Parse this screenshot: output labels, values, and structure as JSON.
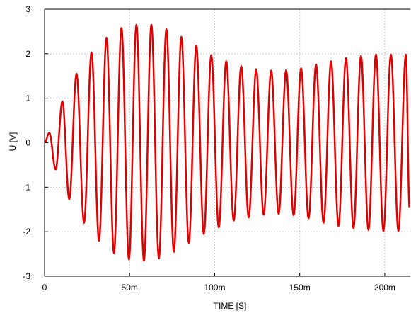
{
  "chart_data": {
    "type": "line",
    "title": "",
    "xlabel": "TIME [S]",
    "ylabel": "U [V]",
    "xlim": [
      0,
      0.215
    ],
    "ylim": [
      -3,
      3
    ],
    "x_ticks": [
      {
        "value": 0,
        "label": "0"
      },
      {
        "value": 0.05,
        "label": "50m"
      },
      {
        "value": 0.1,
        "label": "100m"
      },
      {
        "value": 0.15,
        "label": "150m"
      },
      {
        "value": 0.2,
        "label": "200m"
      }
    ],
    "y_ticks": [
      {
        "value": -3,
        "label": "-3"
      },
      {
        "value": -2,
        "label": "-2"
      },
      {
        "value": -1,
        "label": "-1"
      },
      {
        "value": 0,
        "label": "0"
      },
      {
        "value": 1,
        "label": "1"
      },
      {
        "value": 2,
        "label": "2"
      },
      {
        "value": 3,
        "label": "3"
      }
    ],
    "grid": true,
    "legend": "none",
    "series": [
      {
        "color": "#e00000",
        "points": [
          [
            0.0,
            0.0
          ],
          [
            0.0028,
            0.22
          ],
          [
            0.0065,
            -0.6
          ],
          [
            0.0105,
            0.93
          ],
          [
            0.0145,
            -1.27
          ],
          [
            0.0188,
            1.55
          ],
          [
            0.0232,
            -1.8
          ],
          [
            0.0276,
            2.03
          ],
          [
            0.032,
            -2.2
          ],
          [
            0.0364,
            2.36
          ],
          [
            0.0408,
            -2.48
          ],
          [
            0.0452,
            2.58
          ],
          [
            0.0496,
            -2.62
          ],
          [
            0.054,
            2.65
          ],
          [
            0.0584,
            -2.65
          ],
          [
            0.0628,
            2.65
          ],
          [
            0.0672,
            -2.6
          ],
          [
            0.0716,
            2.55
          ],
          [
            0.076,
            -2.45
          ],
          [
            0.0804,
            2.38
          ],
          [
            0.0848,
            -2.25
          ],
          [
            0.0892,
            2.18
          ],
          [
            0.0936,
            -2.05
          ],
          [
            0.098,
            1.97
          ],
          [
            0.1024,
            -1.9
          ],
          [
            0.1068,
            1.83
          ],
          [
            0.1112,
            -1.75
          ],
          [
            0.1156,
            1.72
          ],
          [
            0.12,
            -1.68
          ],
          [
            0.1244,
            1.65
          ],
          [
            0.1288,
            -1.62
          ],
          [
            0.1332,
            1.62
          ],
          [
            0.1376,
            -1.6
          ],
          [
            0.142,
            1.63
          ],
          [
            0.1464,
            -1.63
          ],
          [
            0.1508,
            1.67
          ],
          [
            0.1552,
            -1.7
          ],
          [
            0.1596,
            1.76
          ],
          [
            0.164,
            -1.8
          ],
          [
            0.1684,
            1.83
          ],
          [
            0.1728,
            -1.87
          ],
          [
            0.1772,
            1.9
          ],
          [
            0.1816,
            -1.92
          ],
          [
            0.186,
            1.95
          ],
          [
            0.1904,
            -1.96
          ],
          [
            0.1948,
            1.98
          ],
          [
            0.1992,
            -1.98
          ],
          [
            0.2036,
            1.98
          ],
          [
            0.208,
            -1.98
          ],
          [
            0.2124,
            1.98
          ],
          [
            0.2145,
            -1.45
          ]
        ]
      }
    ]
  }
}
